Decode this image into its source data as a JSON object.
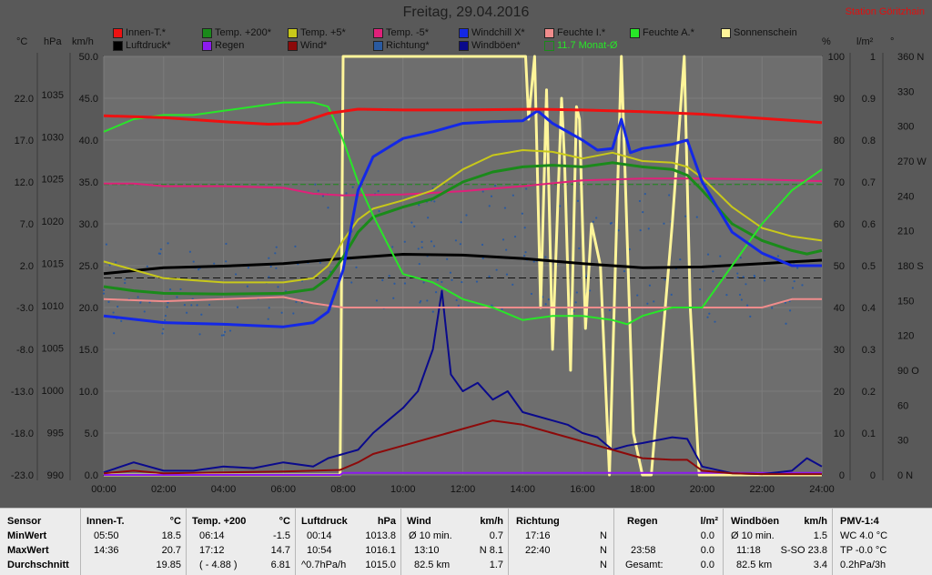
{
  "header": {
    "title": "Freitag, 29.04.2016",
    "station": "Station Göritzhain"
  },
  "legend": [
    {
      "label": "Innen-T.*",
      "color": "#ee1111"
    },
    {
      "label": "Temp. +200*",
      "color": "#1a8a1a"
    },
    {
      "label": "Temp. +5*",
      "color": "#c8c81a"
    },
    {
      "label": "Temp. -5*",
      "color": "#e0207a"
    },
    {
      "label": "Windchill X*",
      "color": "#1428e6"
    },
    {
      "label": "Feuchte I.*",
      "color": "#f08c8c"
    },
    {
      "label": "Feuchte A.*",
      "color": "#28e628"
    },
    {
      "label": "Sonnenschein",
      "color": "#fff59a"
    },
    {
      "label": "Luftdruck*",
      "color": "#000000"
    },
    {
      "label": "Regen",
      "color": "#8c1aee"
    },
    {
      "label": "Wind*",
      "color": "#8c0a0a"
    },
    {
      "label": "Richtung*",
      "color": "#2a5aa0"
    },
    {
      "label": "Windböen*",
      "color": "#0a0a8c"
    },
    {
      "label": "11.7 Monat-Ø",
      "color": "#1a8a1a"
    }
  ],
  "axis_units": {
    "temp": "°C",
    "press": "hPa",
    "wind": "km/h",
    "hum": "%",
    "rain": "l/m²",
    "dir": "°"
  },
  "chart_data": {
    "type": "line",
    "title": "Freitag, 29.04.2016",
    "x_ticks": [
      "00:00",
      "02:00",
      "04:00",
      "06:00",
      "08:00",
      "10:00",
      "12:00",
      "14:00",
      "16:00",
      "18:00",
      "20:00",
      "22:00",
      "24:00"
    ],
    "y_axes": {
      "temperature_c": {
        "ticks": [
          "22.0",
          "17.0",
          "12.0",
          "7.0",
          "2.0",
          "-3.0",
          "-8.0",
          "-13.0",
          "-18.0",
          "-23.0"
        ],
        "range": [
          -23,
          27
        ]
      },
      "pressure_hpa": {
        "ticks": [
          "1035",
          "1030",
          "1025",
          "1020",
          "1015",
          "1010",
          "1005",
          "1000",
          "995",
          "990"
        ],
        "range": [
          990,
          1039.5
        ]
      },
      "wind_kmh": {
        "ticks": [
          "50.0",
          "45.0",
          "40.0",
          "35.0",
          "30.0",
          "25.0",
          "20.0",
          "15.0",
          "10.0",
          "5.0",
          "0.0"
        ],
        "range": [
          0,
          50
        ]
      },
      "humidity_pct": {
        "ticks": [
          "100",
          "90",
          "80",
          "70",
          "60",
          "50",
          "40",
          "30",
          "20",
          "10",
          "0"
        ],
        "range": [
          0,
          100
        ]
      },
      "rain_lm2": {
        "ticks": [
          "1",
          "0.9",
          "0.8",
          "0.7",
          "0.6",
          "0.5",
          "0.4",
          "0.3",
          "0.2",
          "0.1",
          "0"
        ],
        "range": [
          0,
          1
        ]
      },
      "direction_deg": {
        "ticks": [
          "360 N",
          "330",
          "300",
          "270 W",
          "240",
          "210",
          "180 S",
          "150",
          "120",
          "90 O",
          "60",
          "30",
          "0 N"
        ],
        "range": [
          0,
          360
        ]
      }
    },
    "reference_line": {
      "name": "11.7 Monat-Ø",
      "temperature_c": 11.7
    },
    "dashed_line_pressure_hpa": 1013.3,
    "series": [
      {
        "name": "Innen-T.*",
        "axis": "temperature_c",
        "color": "#ee1111",
        "x": [
          0,
          2,
          4,
          5.5,
          6.5,
          7.5,
          8.5,
          10,
          12,
          14.5,
          16,
          18,
          20,
          22,
          24
        ],
        "y": [
          19.9,
          19.7,
          19.2,
          18.9,
          19.0,
          20.2,
          20.7,
          20.6,
          20.6,
          20.7,
          20.6,
          20.4,
          20.1,
          19.6,
          19.1
        ]
      },
      {
        "name": "Temp. +200*",
        "axis": "temperature_c",
        "color": "#1a8a1a",
        "x": [
          0,
          1,
          2,
          4,
          6,
          7,
          7.5,
          8,
          8.5,
          9,
          10,
          11,
          12,
          13,
          14,
          15,
          16,
          17,
          18,
          19,
          19.5,
          20,
          21,
          22,
          23,
          23.5,
          24
        ],
        "y": [
          -0.5,
          -1.0,
          -1.3,
          -1.4,
          -1.3,
          -0.8,
          0.5,
          3.0,
          6.0,
          7.8,
          9.0,
          10.0,
          12.0,
          13.2,
          13.8,
          14.0,
          13.8,
          14.3,
          13.8,
          13.5,
          12.8,
          11.0,
          7.0,
          5.0,
          3.8,
          3.4,
          3.8
        ]
      },
      {
        "name": "Temp. +5*",
        "axis": "temperature_c",
        "color": "#c8c81a",
        "x": [
          0,
          1,
          2,
          4,
          6,
          7,
          7.5,
          8,
          8.5,
          9,
          10,
          11,
          12,
          13,
          14,
          15,
          16,
          17,
          18,
          19,
          19.5,
          20,
          21,
          22,
          23,
          24
        ],
        "y": [
          2.5,
          1.5,
          0.5,
          0.0,
          0.0,
          0.5,
          2.0,
          5.0,
          7.5,
          8.8,
          9.8,
          11.0,
          13.5,
          15.2,
          15.8,
          15.6,
          14.8,
          15.5,
          14.5,
          14.3,
          13.8,
          12.5,
          9.0,
          6.5,
          5.5,
          5.0
        ]
      },
      {
        "name": "Temp. -5*",
        "axis": "temperature_c",
        "color": "#e0207a",
        "x": [
          0,
          1,
          2,
          4,
          6,
          7,
          8,
          10,
          12,
          14,
          16,
          18,
          20,
          22,
          24
        ],
        "y": [
          11.8,
          11.8,
          11.5,
          11.5,
          11.3,
          10.6,
          10.4,
          10.5,
          10.9,
          11.5,
          12.2,
          12.4,
          12.4,
          12.3,
          12.1
        ]
      },
      {
        "name": "Windchill X*",
        "axis": "temperature_c",
        "color": "#1428e6",
        "x": [
          0,
          2,
          4,
          6,
          7,
          7.5,
          8,
          8.5,
          9,
          10,
          11,
          12,
          13,
          14,
          14.5,
          15,
          16,
          16.5,
          17,
          17.3,
          17.6,
          18,
          19,
          19.5,
          20,
          21,
          22,
          23,
          24
        ],
        "y": [
          -4.0,
          -4.8,
          -5.0,
          -5.3,
          -4.8,
          -3.5,
          1.5,
          11.0,
          15.0,
          17.2,
          18.0,
          19.0,
          19.2,
          19.3,
          20.5,
          19.0,
          17.0,
          15.8,
          16.0,
          19.5,
          15.5,
          16.0,
          16.5,
          17.0,
          12.0,
          6.0,
          3.5,
          2.0,
          2.0
        ]
      },
      {
        "name": "Feuchte I.*",
        "axis": "humidity_pct",
        "color": "#f08c8c",
        "x": [
          0,
          2,
          4,
          6,
          7,
          8,
          10,
          12,
          14,
          16,
          18,
          20,
          22,
          23,
          24
        ],
        "y": [
          42,
          41.5,
          42,
          42.5,
          41,
          40,
          40,
          40,
          40,
          40,
          40,
          40,
          40,
          42,
          42
        ]
      },
      {
        "name": "Feuchte A.*",
        "axis": "humidity_pct",
        "color": "#28e628",
        "x": [
          0,
          1,
          2,
          3,
          4,
          5,
          6,
          7,
          7.5,
          8,
          8.5,
          9,
          10,
          11,
          12,
          13,
          14,
          15,
          16,
          17,
          17.5,
          18,
          19,
          20,
          21,
          22,
          23,
          24
        ],
        "y": [
          82,
          85,
          86,
          86,
          87,
          88,
          89,
          89,
          88,
          80,
          70,
          62,
          48,
          46,
          42,
          40,
          37,
          38,
          38,
          37,
          36,
          38,
          40,
          40,
          50,
          60,
          68,
          73
        ]
      },
      {
        "name": "Luftdruck*",
        "axis": "pressure_hpa",
        "color": "#000000",
        "x": [
          0,
          2,
          4,
          6,
          8,
          10,
          12,
          14,
          16,
          18,
          20,
          22,
          23,
          24
        ],
        "y": [
          1013.8,
          1014.5,
          1014.7,
          1015.0,
          1015.6,
          1016.1,
          1016.0,
          1015.6,
          1015.0,
          1014.5,
          1014.6,
          1015.0,
          1015.2,
          1015.4
        ]
      },
      {
        "name": "Sonnenschein",
        "axis": "humidity_pct",
        "color": "#fff59a",
        "x": [
          0,
          7.9,
          8.0,
          8.1,
          14.1,
          14.2,
          14.4,
          14.6,
          14.8,
          15.0,
          15.3,
          15.4,
          15.6,
          15.8,
          15.9,
          16.1,
          16.3,
          16.6,
          16.9,
          17.3,
          17.7,
          18.0,
          18.3,
          19.0,
          19.4,
          19.6,
          19.9,
          20.0,
          24
        ],
        "y": [
          0,
          0,
          100,
          100,
          100,
          85,
          100,
          40,
          92,
          30,
          90,
          75,
          25,
          88,
          85,
          35,
          60,
          50,
          0,
          100,
          10,
          0,
          0,
          60,
          100,
          40,
          0,
          0,
          0
        ]
      },
      {
        "name": "Wind*",
        "axis": "wind_kmh",
        "color": "#8c0a0a",
        "x": [
          0,
          1,
          2,
          4,
          6,
          7.9,
          8.5,
          9,
          10,
          11,
          12,
          13,
          14,
          15,
          16,
          17,
          17.5,
          18,
          19,
          19.5,
          20,
          21,
          22,
          24
        ],
        "y": [
          0.2,
          0.5,
          0.2,
          0.3,
          0.4,
          0.6,
          1.5,
          2.5,
          3.5,
          4.5,
          5.5,
          6.5,
          6.0,
          5.0,
          4.0,
          3.0,
          2.5,
          2.0,
          1.8,
          1.8,
          0.5,
          0.2,
          0.1,
          0.1
        ]
      },
      {
        "name": "Windböen*",
        "axis": "wind_kmh",
        "color": "#0a0a8c",
        "x": [
          0,
          1,
          2,
          3,
          4,
          5,
          6,
          7,
          7.5,
          8,
          8.5,
          9,
          9.5,
          10,
          10.5,
          11,
          11.3,
          11.6,
          12,
          12.5,
          13,
          13.5,
          14,
          14.5,
          15,
          15.5,
          16,
          16.5,
          17,
          17.5,
          18,
          19,
          19.5,
          20,
          21,
          22,
          23,
          23.5,
          24
        ],
        "y": [
          0.3,
          1.5,
          0.5,
          0.5,
          1.0,
          0.8,
          1.5,
          1.0,
          2.0,
          2.5,
          3.0,
          5.0,
          6.5,
          8.0,
          10.0,
          15.0,
          22.0,
          12.0,
          10.0,
          11.0,
          9.0,
          10.0,
          7.5,
          7.0,
          6.5,
          6.0,
          5.0,
          4.5,
          3.0,
          3.5,
          3.8,
          4.5,
          4.3,
          1.0,
          0.2,
          0.1,
          0.5,
          2.0,
          1.0
        ]
      },
      {
        "name": "Regen",
        "axis": "rain_lm2",
        "color": "#8c1aee",
        "x": [
          0,
          7.9,
          8,
          24
        ],
        "y": [
          0,
          0,
          0.005,
          0.005
        ]
      }
    ],
    "direction_scatter": {
      "name": "Richtung*",
      "axis": "direction_deg",
      "color": "#2a5aa0"
    }
  },
  "stats": {
    "sensor": {
      "header": "Sensor",
      "rows": [
        "MinWert",
        "MaxWert",
        "Durchschnitt"
      ]
    },
    "innen": {
      "header": "Innen-T.",
      "unit": "°C",
      "r1t": "05:50",
      "r1v": "18.5",
      "r2t": "14:36",
      "r2v": "20.7",
      "r3t": "",
      "r3v": "19.85"
    },
    "temp200": {
      "header": "Temp. +200",
      "unit": "°C",
      "r1t": "06:14",
      "r1v": "-1.5",
      "r2t": "17:12",
      "r2v": "14.7",
      "r3t": "( - 4.88 )",
      "r3v": "6.81"
    },
    "druck": {
      "header": "Luftdruck",
      "unit": "hPa",
      "r1t": "00:14",
      "r1v": "1013.8",
      "r2t": "10:54",
      "r2v": "1016.1",
      "r3t": "^0.7hPa/h",
      "r3v": "1015.0"
    },
    "wind": {
      "header": "Wind",
      "unit": "km/h",
      "r1t": "Ø 10 min.",
      "r1v": "0.7",
      "r2t": "13:10",
      "r2v": "N 8.1",
      "r3t": "82.5 km",
      "r3v": "1.7"
    },
    "richtung": {
      "header": "Richtung",
      "r1t": "17:16",
      "r1v": "N",
      "r2t": "22:40",
      "r2v": "N",
      "r3t": "",
      "r3v": "N"
    },
    "regen": {
      "header": "Regen",
      "unit": "l/m²",
      "r1t": "",
      "r1v": "0.0",
      "r2t": "23:58",
      "r2v": "0.0",
      "r3t": "Gesamt:",
      "r3v": "0.0"
    },
    "boeen": {
      "header": "Windböen",
      "unit": "km/h",
      "r1t": "Ø 10 min.",
      "r1v": "1.5",
      "r2t": "11:18",
      "r2v": "S-SO 23.8",
      "r3t": "82.5 km",
      "r3v": "3.4"
    },
    "pmv": {
      "header": "PMV-1:4",
      "r1": "WC 4.0 °C",
      "r2": "TP -0.0 °C",
      "r3": "0.2hPa/3h"
    }
  }
}
